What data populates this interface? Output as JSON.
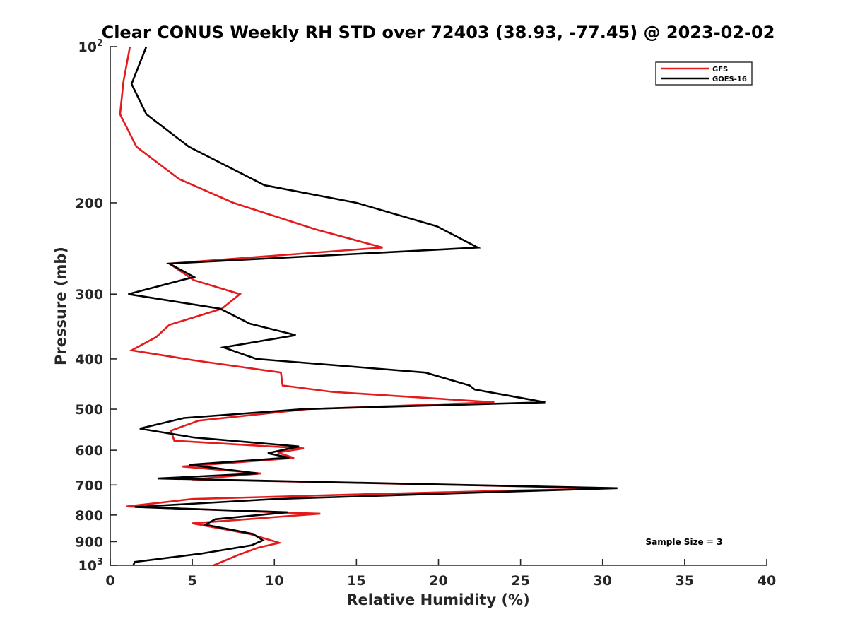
{
  "chart_data": {
    "type": "line",
    "title": "Clear CONUS Weekly RH STD over 72403 (38.93, -77.45) @ 2023-02-02",
    "xlabel": "Relative Humidity (%)",
    "ylabel": "Pressure (mb)",
    "xlim": [
      0,
      40
    ],
    "ylim": [
      100,
      1000
    ],
    "y_scale": "log",
    "y_reversed": true,
    "x_ticks": [
      0,
      5,
      10,
      15,
      20,
      25,
      30,
      35,
      40
    ],
    "y_ticks": [
      {
        "value": 100,
        "base": "10",
        "exp": "2"
      },
      {
        "value": 200,
        "base": "200",
        "exp": ""
      },
      {
        "value": 300,
        "base": "300",
        "exp": ""
      },
      {
        "value": 400,
        "base": "400",
        "exp": ""
      },
      {
        "value": 500,
        "base": "500",
        "exp": ""
      },
      {
        "value": 600,
        "base": "600",
        "exp": ""
      },
      {
        "value": 700,
        "base": "700",
        "exp": ""
      },
      {
        "value": 800,
        "base": "800",
        "exp": ""
      },
      {
        "value": 900,
        "base": "900",
        "exp": ""
      },
      {
        "value": 1000,
        "base": "10",
        "exp": "3"
      }
    ],
    "grid": false,
    "legend_position": "top-right",
    "annotation": "Sample Size = 3",
    "series": [
      {
        "name": "GFS",
        "color": "#e41a1c",
        "points": [
          [
            1.2,
            100
          ],
          [
            0.8,
            117
          ],
          [
            0.6,
            135
          ],
          [
            1.6,
            156
          ],
          [
            4.2,
            180
          ],
          [
            7.5,
            200
          ],
          [
            12.5,
            225
          ],
          [
            16.6,
            244
          ],
          [
            3.6,
            262
          ],
          [
            5.1,
            282
          ],
          [
            7.9,
            300
          ],
          [
            6.8,
            320
          ],
          [
            3.6,
            344
          ],
          [
            2.8,
            363
          ],
          [
            1.3,
            385
          ],
          [
            5.0,
            402
          ],
          [
            10.4,
            425
          ],
          [
            10.5,
            450
          ],
          [
            13.5,
            463
          ],
          [
            23.4,
            485
          ],
          [
            12.0,
            500
          ],
          [
            5.4,
            526
          ],
          [
            3.7,
            550
          ],
          [
            3.9,
            575
          ],
          [
            11.8,
            595
          ],
          [
            10.2,
            606
          ],
          [
            11.2,
            621
          ],
          [
            4.4,
            645
          ],
          [
            9.2,
            665
          ],
          [
            5.0,
            683
          ],
          [
            30.6,
            710
          ],
          [
            15.0,
            730
          ],
          [
            5.0,
            745
          ],
          [
            1.0,
            770
          ],
          [
            10.0,
            790
          ],
          [
            12.8,
            795
          ],
          [
            5.0,
            830
          ],
          [
            8.5,
            870
          ],
          [
            10.3,
            905
          ],
          [
            9.0,
            925
          ],
          [
            7.8,
            955
          ],
          [
            6.3,
            1000
          ]
        ]
      },
      {
        "name": "GOES-16",
        "color": "#000000",
        "points": [
          [
            2.2,
            100
          ],
          [
            1.3,
            118
          ],
          [
            2.2,
            135
          ],
          [
            4.8,
            156
          ],
          [
            9.4,
            185
          ],
          [
            15.0,
            200
          ],
          [
            19.9,
            222
          ],
          [
            22.4,
            244
          ],
          [
            3.6,
            262
          ],
          [
            5.1,
            278
          ],
          [
            1.1,
            300
          ],
          [
            6.7,
            320
          ],
          [
            8.5,
            342
          ],
          [
            11.3,
            360
          ],
          [
            6.9,
            380
          ],
          [
            8.9,
            400
          ],
          [
            19.2,
            425
          ],
          [
            21.9,
            450
          ],
          [
            22.2,
            458
          ],
          [
            26.5,
            485
          ],
          [
            11.7,
            500
          ],
          [
            4.5,
            520
          ],
          [
            1.8,
            545
          ],
          [
            5.1,
            567
          ],
          [
            11.5,
            590
          ],
          [
            9.6,
            608
          ],
          [
            10.9,
            620
          ],
          [
            4.8,
            640
          ],
          [
            9.0,
            665
          ],
          [
            2.9,
            680
          ],
          [
            30.9,
            710
          ],
          [
            10.0,
            745
          ],
          [
            1.5,
            772
          ],
          [
            10.8,
            790
          ],
          [
            6.4,
            815
          ],
          [
            5.8,
            835
          ],
          [
            8.7,
            870
          ],
          [
            9.3,
            895
          ],
          [
            8.6,
            915
          ],
          [
            5.5,
            950
          ],
          [
            1.5,
            985
          ],
          [
            1.4,
            1000
          ]
        ]
      }
    ]
  }
}
